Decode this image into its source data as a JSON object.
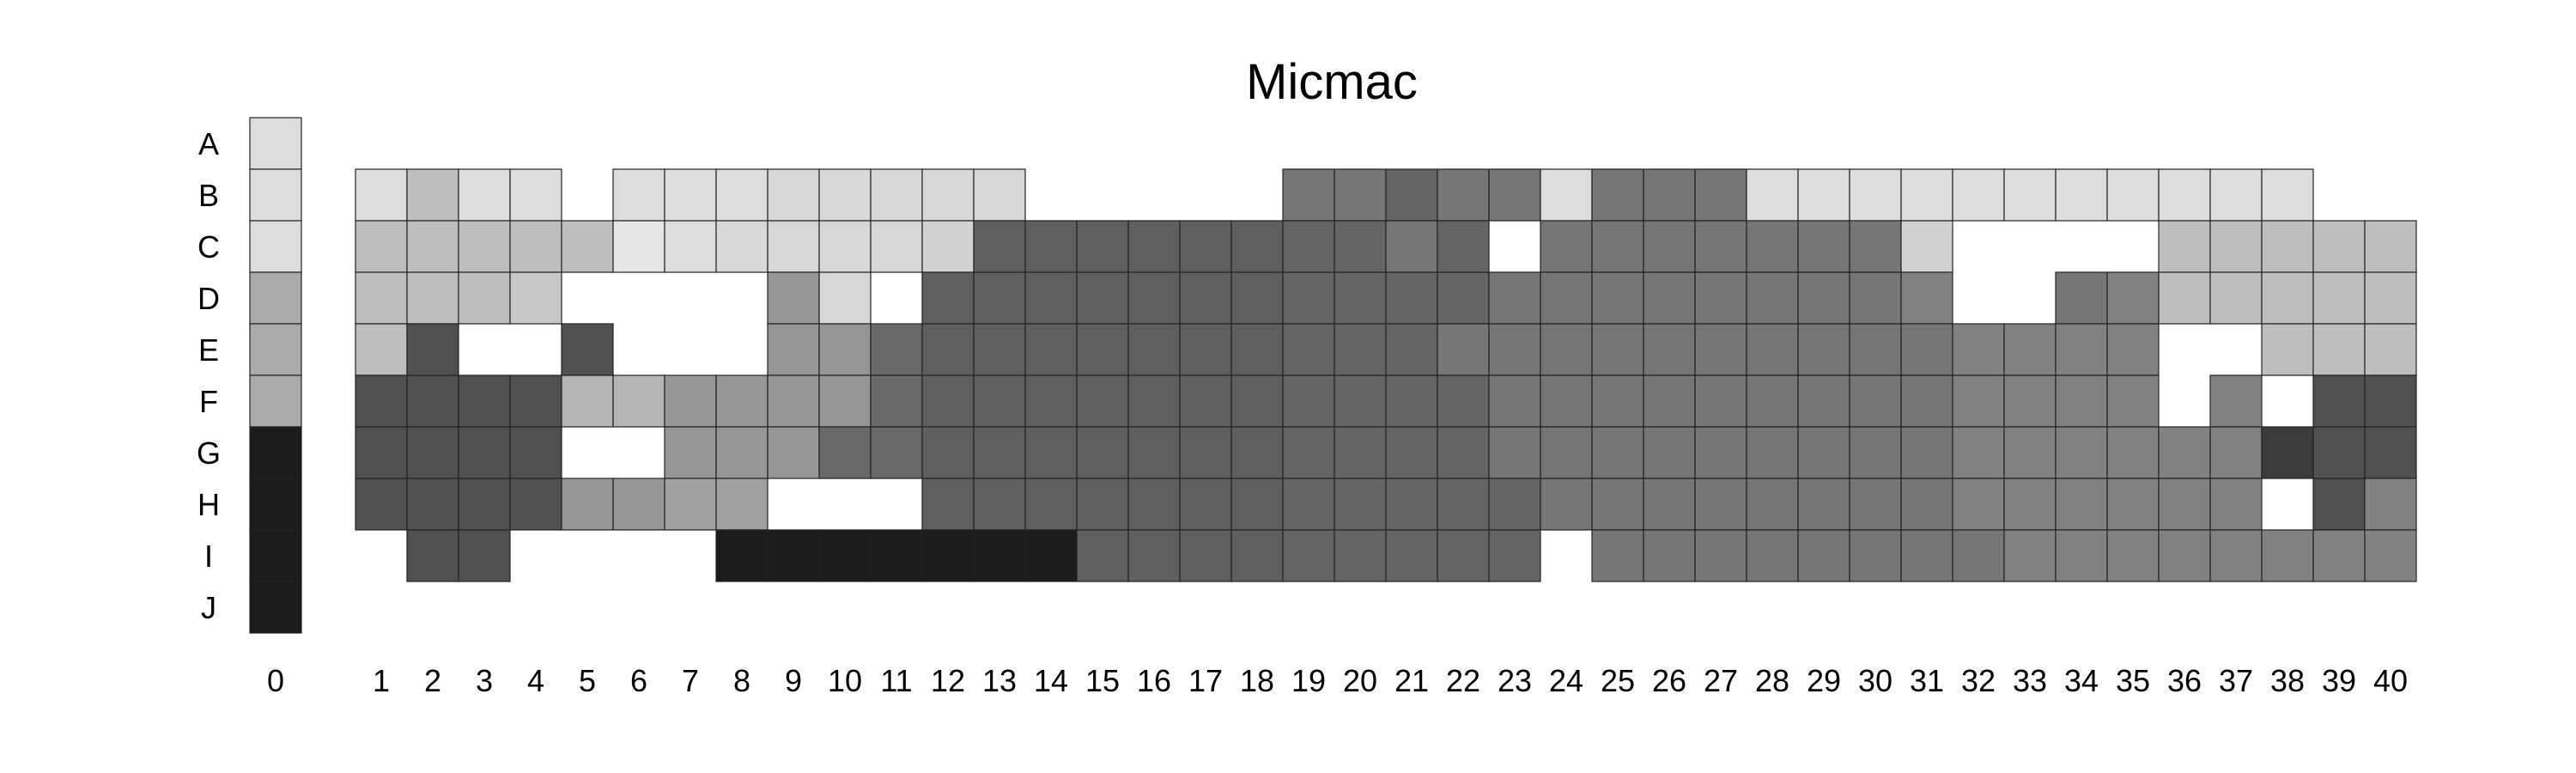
{
  "chart_data": {
    "type": "heatmap",
    "title": "Micmac",
    "rows": [
      "A",
      "B",
      "C",
      "D",
      "E",
      "F",
      "G",
      "H",
      "I",
      "J"
    ],
    "columns": [
      "0",
      "1",
      "2",
      "3",
      "4",
      "5",
      "6",
      "7",
      "8",
      "9",
      "10",
      "11",
      "12",
      "13",
      "14",
      "15",
      "16",
      "17",
      "18",
      "19",
      "20",
      "21",
      "22",
      "23",
      "24",
      "25",
      "26",
      "27",
      "28",
      "29",
      "30",
      "31",
      "32",
      "33",
      "34",
      "35",
      "36",
      "37",
      "38",
      "39",
      "40"
    ],
    "encoding": "grayscale intensity 0-255 per cell; null = empty (no cell)",
    "column_0": [
      220,
      220,
      220,
      170,
      170,
      170,
      28,
      28,
      28,
      28
    ],
    "grid": [
      [
        null,
        null,
        null,
        null,
        null,
        null,
        null,
        null,
        null,
        null,
        null,
        null,
        null,
        null,
        null,
        null,
        null,
        null,
        null,
        null,
        null,
        null,
        null,
        null,
        null,
        null,
        null,
        null,
        null,
        null,
        null,
        null,
        null,
        null,
        null,
        null,
        null,
        null,
        null,
        null
      ],
      [
        220,
        190,
        220,
        220,
        null,
        220,
        220,
        220,
        215,
        215,
        215,
        215,
        215,
        null,
        null,
        null,
        null,
        null,
        118,
        118,
        100,
        118,
        118,
        220,
        118,
        118,
        118,
        220,
        220,
        220,
        220,
        220,
        220,
        220,
        220,
        220,
        220,
        220,
        null,
        null
      ],
      [
        190,
        190,
        190,
        190,
        190,
        230,
        220,
        215,
        215,
        215,
        215,
        210,
        95,
        95,
        95,
        95,
        95,
        95,
        100,
        100,
        118,
        100,
        null,
        118,
        118,
        118,
        118,
        118,
        118,
        118,
        210,
        null,
        null,
        null,
        null,
        190,
        190,
        190,
        190,
        190
      ],
      [
        190,
        190,
        190,
        200,
        null,
        null,
        null,
        null,
        150,
        215,
        null,
        95,
        95,
        95,
        95,
        95,
        95,
        95,
        100,
        100,
        100,
        100,
        118,
        118,
        118,
        118,
        118,
        118,
        118,
        118,
        130,
        null,
        null,
        118,
        130,
        190,
        190,
        190,
        190,
        190
      ],
      [
        190,
        80,
        null,
        null,
        80,
        null,
        null,
        null,
        150,
        150,
        105,
        95,
        95,
        95,
        95,
        95,
        95,
        95,
        100,
        100,
        100,
        118,
        118,
        118,
        118,
        118,
        118,
        118,
        118,
        118,
        118,
        130,
        130,
        130,
        130,
        null,
        null,
        190,
        190,
        190
      ],
      [
        80,
        80,
        80,
        80,
        180,
        180,
        150,
        150,
        150,
        150,
        105,
        95,
        95,
        95,
        95,
        95,
        95,
        95,
        100,
        100,
        100,
        100,
        118,
        118,
        118,
        118,
        118,
        118,
        118,
        118,
        118,
        130,
        130,
        130,
        130,
        null,
        130,
        null,
        80,
        80
      ],
      [
        80,
        80,
        80,
        80,
        null,
        null,
        150,
        150,
        150,
        105,
        105,
        95,
        95,
        95,
        95,
        95,
        95,
        95,
        100,
        100,
        100,
        100,
        118,
        118,
        118,
        118,
        118,
        118,
        118,
        118,
        118,
        130,
        130,
        130,
        130,
        130,
        130,
        60,
        80,
        80
      ],
      [
        80,
        80,
        80,
        80,
        150,
        150,
        160,
        160,
        null,
        null,
        null,
        95,
        95,
        95,
        95,
        95,
        95,
        95,
        100,
        100,
        100,
        100,
        100,
        118,
        118,
        118,
        118,
        118,
        118,
        118,
        118,
        130,
        130,
        130,
        130,
        130,
        130,
        null,
        80,
        130
      ],
      [
        null,
        80,
        80,
        null,
        null,
        null,
        null,
        28,
        28,
        28,
        28,
        28,
        28,
        28,
        95,
        95,
        95,
        95,
        100,
        100,
        100,
        100,
        100,
        null,
        118,
        118,
        118,
        118,
        118,
        118,
        118,
        118,
        130,
        130,
        130,
        130,
        130,
        130,
        130,
        130
      ],
      [
        null,
        null,
        null,
        null,
        null,
        null,
        null,
        null,
        null,
        null,
        null,
        null,
        null,
        null,
        null,
        null,
        null,
        null,
        null,
        null,
        null,
        null,
        null,
        null,
        null,
        null,
        null,
        null,
        null,
        null,
        null,
        null,
        null,
        null,
        null,
        null,
        null,
        null,
        null,
        null
      ]
    ]
  }
}
